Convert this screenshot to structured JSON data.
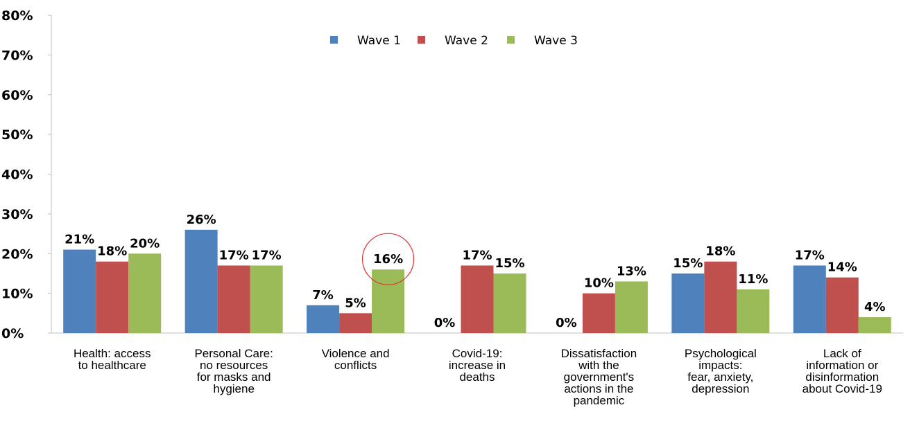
{
  "chart_data": {
    "type": "bar",
    "title": "",
    "xlabel": "",
    "ylabel": "",
    "ylim": [
      0,
      80
    ],
    "yticks": [
      "0%",
      "10%",
      "20%",
      "30%",
      "40%",
      "50%",
      "60%",
      "70%",
      "80%"
    ],
    "categories": [
      [
        "Health: access",
        "to healthcare"
      ],
      [
        "Personal Care:",
        "no resources",
        "for masks and",
        "hygiene"
      ],
      [
        "Violence and",
        "conflicts"
      ],
      [
        "Covid-19:",
        "increase in",
        "deaths"
      ],
      [
        "Dissatisfaction",
        "with the",
        "government's",
        "actions in the",
        "pandemic"
      ],
      [
        "Psychological",
        "impacts:",
        "fear, anxiety,",
        "depression"
      ],
      [
        "Lack of",
        "information or",
        "disinformation",
        "about Covid-19"
      ]
    ],
    "series": [
      {
        "name": "Wave 1",
        "color": "#4f81bd",
        "values": [
          21,
          26,
          7,
          0,
          0,
          15,
          17
        ],
        "labels": [
          "21%",
          "26%",
          "7%",
          "0%",
          "0%",
          "15%",
          "17%"
        ]
      },
      {
        "name": "Wave 2",
        "color": "#c0504d",
        "values": [
          18,
          17,
          5,
          17,
          10,
          18,
          14
        ],
        "labels": [
          "18%",
          "17%",
          "5%",
          "17%",
          "10%",
          "18%",
          "14%"
        ]
      },
      {
        "name": "Wave 3",
        "color": "#9bbb59",
        "values": [
          20,
          17,
          16,
          15,
          13,
          11,
          4
        ],
        "labels": [
          "20%",
          "17%",
          "16%",
          "15%",
          "13%",
          "11%",
          "4%"
        ]
      }
    ],
    "legend_position": "top-center",
    "grid": false,
    "annotation": {
      "type": "circle",
      "color": "#e03030",
      "target_category": 2,
      "target_series": 2
    }
  }
}
